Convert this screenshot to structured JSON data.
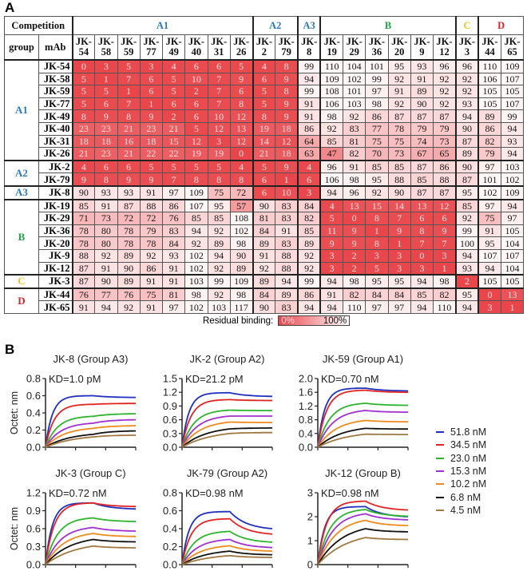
{
  "panels": {
    "a": "A",
    "b": "B"
  },
  "chart_data": [
    {
      "type": "heatmap",
      "corner_label": "Competition",
      "group_header": "group",
      "mab_header": "mAb",
      "column_groups": [
        {
          "label": "A1",
          "span": 8,
          "color": "#2a78b6"
        },
        {
          "label": "A2",
          "span": 2,
          "color": "#2a78b6"
        },
        {
          "label": "A3",
          "span": 1,
          "color": "#2a78b6"
        },
        {
          "label": "B",
          "span": 6,
          "color": "#22a34a"
        },
        {
          "label": "C",
          "span": 1,
          "color": "#f0c020"
        },
        {
          "label": "D",
          "span": 2,
          "color": "#d42028"
        }
      ],
      "columns": [
        "JK-54",
        "JK-58",
        "JK-59",
        "JK-77",
        "JK-49",
        "JK-40",
        "JK-31",
        "JK-26",
        "JK-2",
        "JK-79",
        "JK-8",
        "JK-19",
        "JK-29",
        "JK-36",
        "JK-20",
        "JK-9",
        "JK-12",
        "JK-3",
        "JK-44",
        "JK-65"
      ],
      "row_groups": [
        {
          "label": "A1",
          "count": 8,
          "color": "#2a78b6"
        },
        {
          "label": "A2",
          "count": 2,
          "color": "#2a78b6"
        },
        {
          "label": "A3",
          "count": 1,
          "color": "#2a78b6"
        },
        {
          "label": "B",
          "count": 6,
          "color": "#22a34a"
        },
        {
          "label": "C",
          "count": 1,
          "color": "#f0c020"
        },
        {
          "label": "D",
          "count": 2,
          "color": "#d42028"
        }
      ],
      "rows": [
        {
          "mab": "JK-54",
          "values": [
            0,
            3,
            5,
            3,
            4,
            6,
            6,
            5,
            4,
            8,
            99,
            110,
            104,
            101,
            95,
            93,
            96,
            96,
            110,
            109
          ]
        },
        {
          "mab": "JK-58",
          "values": [
            5,
            1,
            7,
            6,
            5,
            10,
            7,
            9,
            6,
            9,
            94,
            109,
            102,
            99,
            92,
            91,
            92,
            92,
            106,
            107
          ]
        },
        {
          "mab": "JK-59",
          "values": [
            5,
            5,
            1,
            6,
            5,
            2,
            7,
            6,
            5,
            8,
            99,
            108,
            101,
            97,
            91,
            89,
            92,
            92,
            105,
            105
          ]
        },
        {
          "mab": "JK-77",
          "values": [
            5,
            6,
            7,
            1,
            6,
            6,
            7,
            8,
            5,
            9,
            91,
            106,
            103,
            98,
            92,
            90,
            92,
            93,
            105,
            107
          ]
        },
        {
          "mab": "JK-49",
          "values": [
            8,
            9,
            8,
            9,
            2,
            6,
            10,
            12,
            8,
            9,
            91,
            98,
            92,
            86,
            87,
            87,
            87,
            94,
            89,
            99
          ]
        },
        {
          "mab": "JK-40",
          "values": [
            23,
            23,
            21,
            23,
            21,
            5,
            12,
            13,
            19,
            18,
            86,
            92,
            83,
            77,
            78,
            79,
            79,
            90,
            86,
            94
          ]
        },
        {
          "mab": "JK-31",
          "values": [
            18,
            18,
            16,
            18,
            15,
            12,
            3,
            12,
            14,
            12,
            64,
            85,
            81,
            75,
            75,
            74,
            73,
            87,
            82,
            93
          ]
        },
        {
          "mab": "JK-26",
          "values": [
            21,
            23,
            21,
            22,
            22,
            19,
            19,
            0,
            21,
            18,
            63,
            47,
            82,
            70,
            73,
            67,
            65,
            89,
            79,
            94
          ]
        },
        {
          "mab": "JK-2",
          "values": [
            4,
            6,
            6,
            5,
            5,
            5,
            5,
            4,
            5,
            9,
            4,
            96,
            91,
            85,
            85,
            87,
            86,
            90,
            97,
            103
          ]
        },
        {
          "mab": "JK-79",
          "values": [
            9,
            8,
            9,
            9,
            7,
            8,
            8,
            8,
            6,
            1,
            6,
            106,
            98,
            95,
            88,
            85,
            88,
            87,
            101,
            102
          ]
        },
        {
          "mab": "JK-8",
          "values": [
            90,
            93,
            93,
            91,
            97,
            109,
            75,
            72,
            6,
            10,
            3,
            94,
            96,
            92,
            90,
            87,
            87,
            95,
            102,
            109
          ]
        },
        {
          "mab": "JK-19",
          "values": [
            85,
            91,
            87,
            88,
            86,
            107,
            95,
            57,
            90,
            83,
            84,
            4,
            13,
            15,
            14,
            13,
            12,
            85,
            97,
            94
          ]
        },
        {
          "mab": "JK-29",
          "values": [
            71,
            73,
            72,
            72,
            76,
            85,
            85,
            108,
            81,
            83,
            82,
            5,
            0,
            8,
            7,
            6,
            6,
            92,
            75,
            97
          ]
        },
        {
          "mab": "JK-36",
          "values": [
            78,
            80,
            78,
            79,
            83,
            94,
            92,
            102,
            84,
            91,
            85,
            11,
            9,
            1,
            9,
            8,
            9,
            99,
            91,
            105
          ]
        },
        {
          "mab": "JK-20",
          "values": [
            78,
            80,
            78,
            78,
            84,
            92,
            89,
            98,
            89,
            83,
            89,
            9,
            9,
            8,
            1,
            7,
            7,
            100,
            95,
            104
          ]
        },
        {
          "mab": "JK-9",
          "values": [
            88,
            92,
            89,
            92,
            93,
            102,
            94,
            90,
            91,
            88,
            92,
            3,
            2,
            3,
            3,
            0,
            3,
            94,
            107,
            107
          ]
        },
        {
          "mab": "JK-12",
          "values": [
            87,
            91,
            90,
            86,
            91,
            102,
            92,
            89,
            92,
            88,
            92,
            3,
            2,
            5,
            3,
            3,
            1,
            93,
            94,
            104
          ]
        },
        {
          "mab": "JK-3",
          "values": [
            87,
            90,
            89,
            91,
            91,
            103,
            99,
            109,
            89,
            94,
            99,
            94,
            98,
            95,
            95,
            94,
            98,
            2,
            105,
            105
          ]
        },
        {
          "mab": "JK-44",
          "values": [
            76,
            77,
            76,
            75,
            81,
            98,
            92,
            98,
            84,
            89,
            86,
            91,
            82,
            84,
            84,
            85,
            82,
            95,
            0,
            13
          ]
        },
        {
          "mab": "JK-65",
          "values": [
            91,
            94,
            92,
            91,
            97,
            102,
            103,
            117,
            90,
            83,
            94,
            94,
            110,
            97,
            97,
            94,
            110,
            94,
            3,
            1
          ]
        }
      ],
      "color_scale": {
        "min_color": "#e8454a",
        "max_color": "#ffffff",
        "min": 0,
        "max": 100
      },
      "legend": {
        "label": "Residual binding:",
        "min_label": "0%",
        "max_label": "100%"
      }
    },
    {
      "type": "line",
      "title": "JK-8 (Group A3)",
      "annotation": "KD=1.0 pM",
      "ylabel": "Octet: nm",
      "ylim": [
        0,
        0.8
      ],
      "yticks": [
        "0.0",
        "0.2",
        "0.4",
        "0.6",
        "0.8"
      ],
      "series": [
        {
          "name": "51.8 nM",
          "association_end": 0.6,
          "dissociation_end": 0.58
        },
        {
          "name": "34.5 nM",
          "association_end": 0.5,
          "dissociation_end": 0.51
        },
        {
          "name": "23.0 nM",
          "association_end": 0.36,
          "dissociation_end": 0.39
        },
        {
          "name": "15.3 nM",
          "association_end": 0.28,
          "dissociation_end": 0.32
        },
        {
          "name": "10.2 nM",
          "association_end": 0.22,
          "dissociation_end": 0.25
        },
        {
          "name": "6.8 nM",
          "association_end": 0.15,
          "dissociation_end": 0.19
        },
        {
          "name": "4.5 nM",
          "association_end": 0.12,
          "dissociation_end": 0.14
        }
      ]
    },
    {
      "type": "line",
      "title": "JK-2 (Group A2)",
      "annotation": "KD=21.2 pM",
      "ylabel": "",
      "ylim": [
        0,
        1.5
      ],
      "yticks": [
        "0.0",
        "0.3",
        "0.6",
        "0.9",
        "1.2",
        "1.5"
      ],
      "series": [
        {
          "name": "51.8 nM",
          "association_end": 1.19,
          "dissociation_end": 1.11
        },
        {
          "name": "34.5 nM",
          "association_end": 1.04,
          "dissociation_end": 1.02
        },
        {
          "name": "23.0 nM",
          "association_end": 0.81,
          "dissociation_end": 0.8
        },
        {
          "name": "15.3 nM",
          "association_end": 0.68,
          "dissociation_end": 0.68
        },
        {
          "name": "10.2 nM",
          "association_end": 0.55,
          "dissociation_end": 0.54
        },
        {
          "name": "6.8 nM",
          "association_end": 0.4,
          "dissociation_end": 0.42
        },
        {
          "name": "4.5 nM",
          "association_end": 0.3,
          "dissociation_end": 0.32
        }
      ]
    },
    {
      "type": "line",
      "title": "JK-59 (Group A1)",
      "annotation": "KD=0.70 nM",
      "ylabel": "",
      "ylim": [
        0,
        2.0
      ],
      "yticks": [
        "0.0",
        "0.4",
        "0.8",
        "1.2",
        "1.6",
        "2.0"
      ],
      "series": [
        {
          "name": "51.8 nM",
          "association_end": 1.72,
          "dissociation_end": 1.64
        },
        {
          "name": "34.5 nM",
          "association_end": 1.66,
          "dissociation_end": 1.6
        },
        {
          "name": "23.0 nM",
          "association_end": 1.28,
          "dissociation_end": 1.22
        },
        {
          "name": "15.3 nM",
          "association_end": 1.07,
          "dissociation_end": 1.02
        },
        {
          "name": "10.2 nM",
          "association_end": 0.78,
          "dissociation_end": 0.74
        },
        {
          "name": "6.8 nM",
          "association_end": 0.55,
          "dissociation_end": 0.53
        },
        {
          "name": "4.5 nM",
          "association_end": 0.38,
          "dissociation_end": 0.37
        }
      ]
    },
    {
      "type": "line",
      "title": "JK-3 (Group C)",
      "annotation": "KD=0.72 nM",
      "ylabel": "Octet: nm",
      "ylim": [
        0,
        1.2
      ],
      "yticks": [
        "0.0",
        "0.3",
        "0.6",
        "0.9",
        "1.2"
      ],
      "series": [
        {
          "name": "51.8 nM",
          "association_end": 1.03,
          "dissociation_end": 0.93
        },
        {
          "name": "34.5 nM",
          "association_end": 1.03,
          "dissociation_end": 0.97
        },
        {
          "name": "23.0 nM",
          "association_end": 0.78,
          "dissociation_end": 0.72
        },
        {
          "name": "15.3 nM",
          "association_end": 0.62,
          "dissociation_end": 0.56
        },
        {
          "name": "10.2 nM",
          "association_end": 0.52,
          "dissociation_end": 0.47
        },
        {
          "name": "6.8 nM",
          "association_end": 0.42,
          "dissociation_end": 0.38
        },
        {
          "name": "4.5 nM",
          "association_end": 0.31,
          "dissociation_end": 0.28
        }
      ]
    },
    {
      "type": "line",
      "title": "JK-79 (Group A2)",
      "annotation": "KD=0.98 nM",
      "ylabel": "",
      "ylim": [
        0,
        0.8
      ],
      "yticks": [
        "0.0",
        "0.2",
        "0.4",
        "0.6",
        "0.8"
      ],
      "series": [
        {
          "name": "51.8 nM",
          "association_end": 0.59,
          "dissociation_end": 0.4
        },
        {
          "name": "34.5 nM",
          "association_end": 0.51,
          "dissociation_end": 0.34
        },
        {
          "name": "23.0 nM",
          "association_end": 0.37,
          "dissociation_end": 0.25
        },
        {
          "name": "15.3 nM",
          "association_end": 0.28,
          "dissociation_end": 0.19
        },
        {
          "name": "10.2 nM",
          "association_end": 0.21,
          "dissociation_end": 0.15
        },
        {
          "name": "6.8 nM",
          "association_end": 0.15,
          "dissociation_end": 0.11
        },
        {
          "name": "4.5 nM",
          "association_end": 0.1,
          "dissociation_end": 0.08
        }
      ]
    },
    {
      "type": "line",
      "title": "JK-12 (Group B)",
      "annotation": "KD=0.98 nM",
      "ylabel": "",
      "ylim": [
        0,
        3
      ],
      "yticks": [
        "0",
        "1",
        "2",
        "3"
      ],
      "series": [
        {
          "name": "51.8 nM",
          "association_end": 2.42,
          "dissociation_end": 2.0
        },
        {
          "name": "34.5 nM",
          "association_end": 2.65,
          "dissociation_end": 2.28
        },
        {
          "name": "23.0 nM",
          "association_end": 2.3,
          "dissociation_end": 2.02
        },
        {
          "name": "15.3 nM",
          "association_end": 2.12,
          "dissociation_end": 1.87
        },
        {
          "name": "10.2 nM",
          "association_end": 1.85,
          "dissociation_end": 1.63
        },
        {
          "name": "6.8 nM",
          "association_end": 1.5,
          "dissociation_end": 1.37
        },
        {
          "name": "4.5 nM",
          "association_end": 1.13,
          "dissociation_end": 1.05
        }
      ]
    }
  ],
  "concentration_legend": [
    {
      "label": "51.8 nM",
      "color": "#1f2fc0"
    },
    {
      "label": "34.5 nM",
      "color": "#e02424"
    },
    {
      "label": "23.0 nM",
      "color": "#2cb52c"
    },
    {
      "label": "15.3 nM",
      "color": "#a030d0"
    },
    {
      "label": "10.2 nM",
      "color": "#f08a1c"
    },
    {
      "label": "6.8 nM",
      "color": "#111111"
    },
    {
      "label": "4.5 nM",
      "color": "#a07840"
    }
  ]
}
